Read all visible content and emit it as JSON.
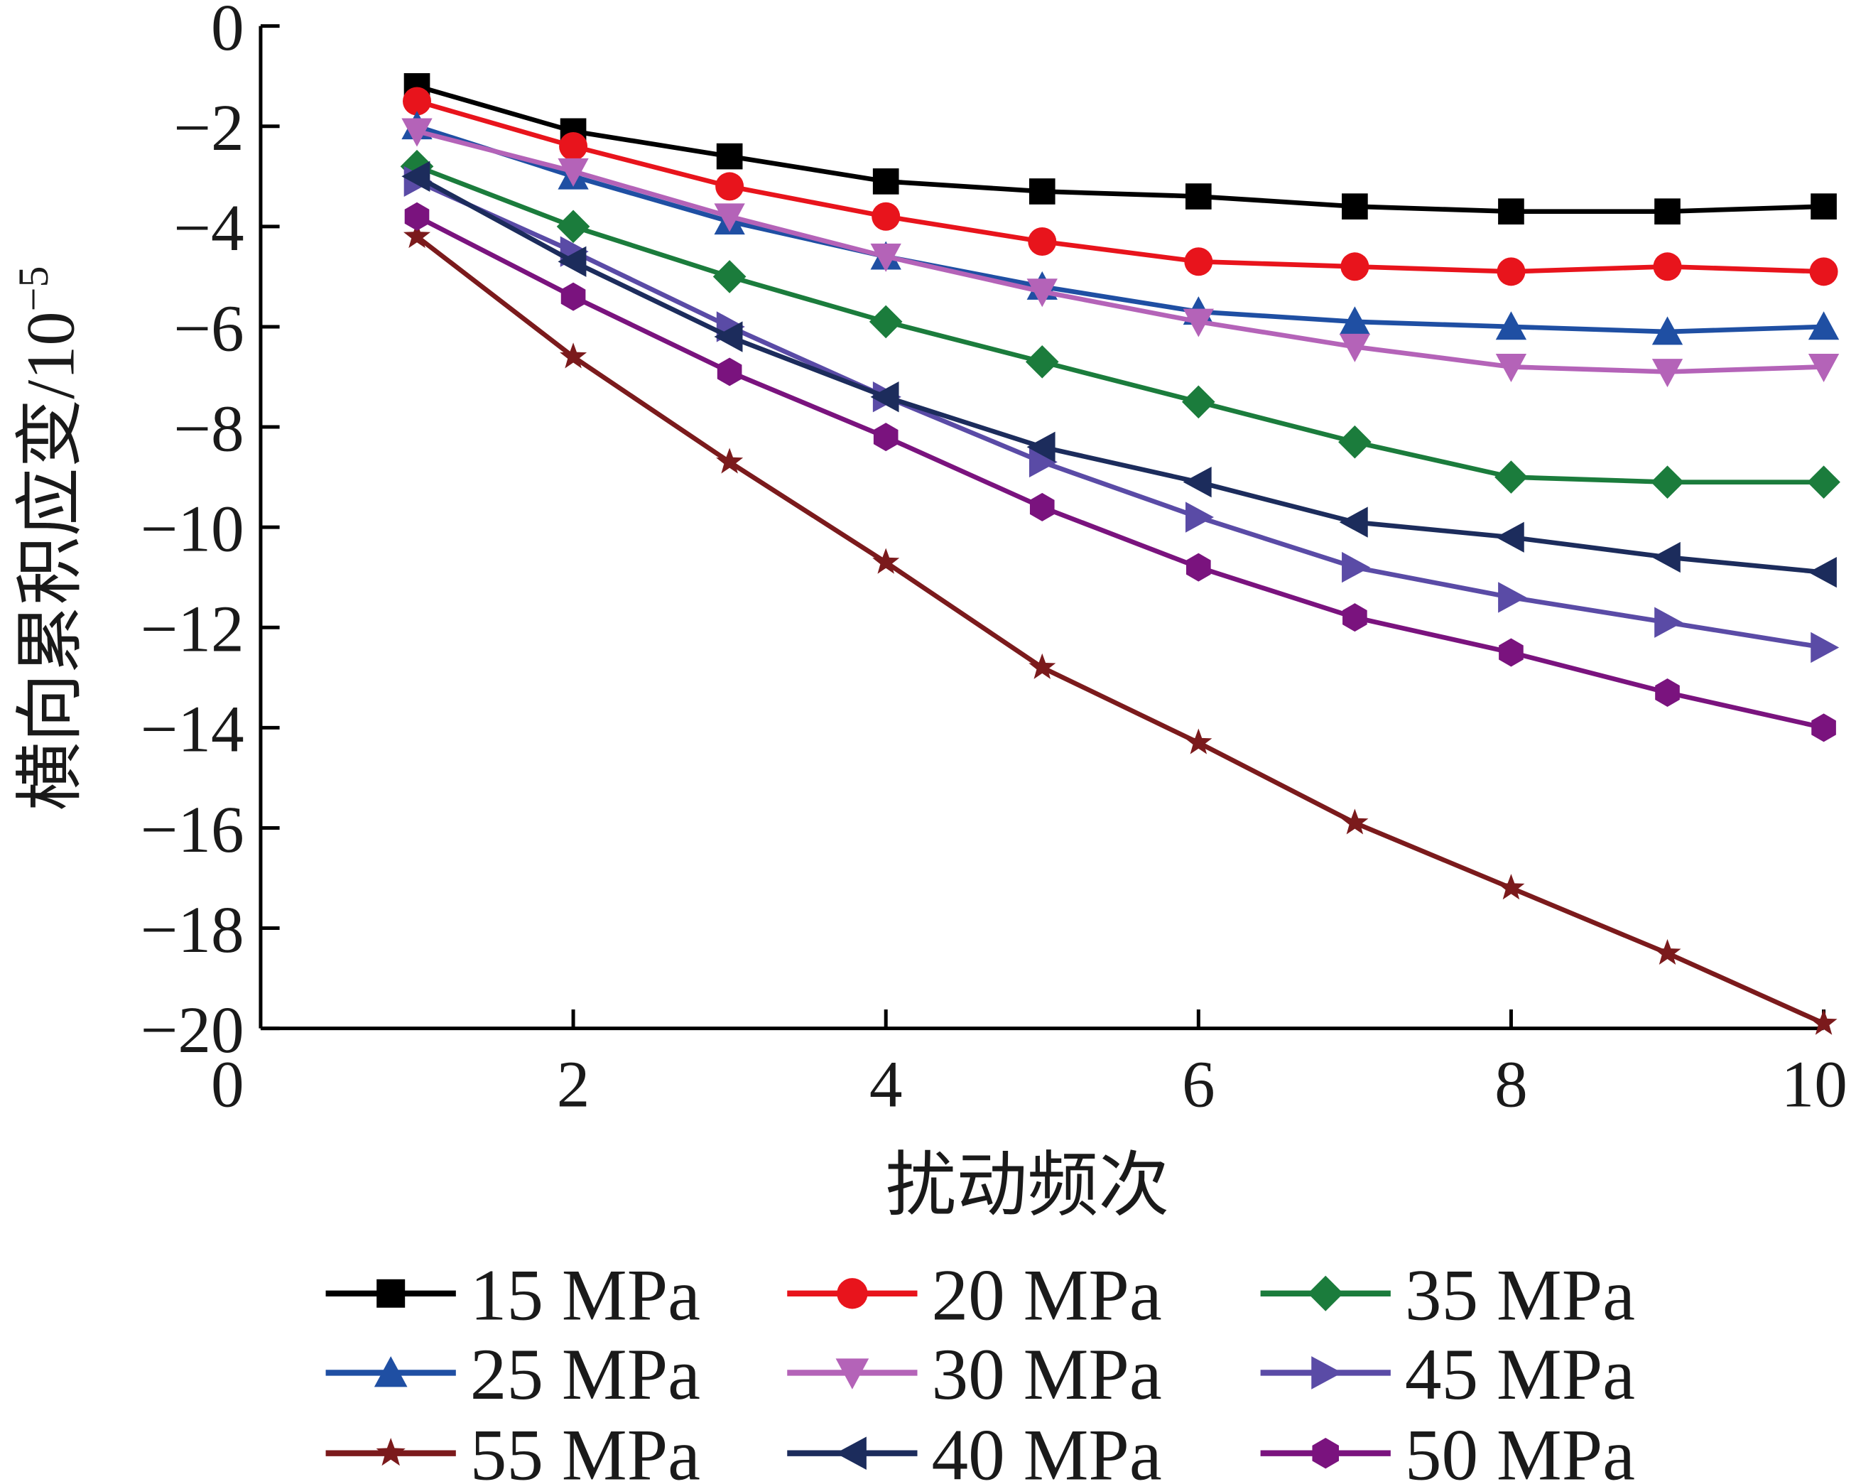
{
  "chart_data": {
    "type": "line",
    "title": "",
    "xlabel": "扰动频次",
    "ylabel": "横向累积应变/10",
    "ylabel_exponent": "−5",
    "xlim": [
      0,
      10
    ],
    "ylim": [
      -20,
      0
    ],
    "xticks": [
      0,
      2,
      4,
      6,
      8,
      10
    ],
    "xtick_labels": [
      "0",
      "2",
      "4",
      "6",
      "8",
      "10"
    ],
    "yticks": [
      0,
      -2,
      -4,
      -6,
      -8,
      -10,
      -12,
      -14,
      -16,
      -18,
      -20
    ],
    "ytick_labels": [
      "0",
      "−2",
      "−4",
      "−6",
      "−8",
      "−10",
      "−12",
      "−14",
      "−16",
      "−18",
      "−20"
    ],
    "grid": false,
    "legend_placement": "bottom",
    "x": [
      1,
      2,
      3,
      4,
      5,
      6,
      7,
      8,
      9,
      10
    ],
    "series": [
      {
        "name": "15 MPa",
        "color": "#000000",
        "marker": "square",
        "values": [
          -1.2,
          -2.1,
          -2.6,
          -3.1,
          -3.3,
          -3.4,
          -3.6,
          -3.7,
          -3.7,
          -3.6
        ]
      },
      {
        "name": "20 MPa",
        "color": "#e8141c",
        "marker": "circle",
        "values": [
          -1.5,
          -2.4,
          -3.2,
          -3.8,
          -4.3,
          -4.7,
          -4.8,
          -4.9,
          -4.8,
          -4.9
        ]
      },
      {
        "name": "35 MPa",
        "color": "#1b7c3c",
        "marker": "diamond",
        "values": [
          -2.8,
          -4.0,
          -5.0,
          -5.9,
          -6.7,
          -7.5,
          -8.3,
          -9.0,
          -9.1,
          -9.1
        ]
      },
      {
        "name": "25 MPa",
        "color": "#1f4fa3",
        "marker": "triangle-up",
        "values": [
          -2.0,
          -3.0,
          -3.9,
          -4.6,
          -5.2,
          -5.7,
          -5.9,
          -6.0,
          -6.1,
          -6.0
        ]
      },
      {
        "name": "30 MPa",
        "color": "#b463b8",
        "marker": "triangle-down",
        "values": [
          -2.1,
          -2.9,
          -3.8,
          -4.6,
          -5.3,
          -5.9,
          -6.4,
          -6.8,
          -6.9,
          -6.8
        ]
      },
      {
        "name": "45 MPa",
        "color": "#5a4ba6",
        "marker": "triangle-right",
        "values": [
          -3.1,
          -4.5,
          -6.0,
          -7.4,
          -8.7,
          -9.8,
          -10.8,
          -11.4,
          -11.9,
          -12.4
        ]
      },
      {
        "name": "55 MPa",
        "color": "#7b1a1c",
        "marker": "star",
        "values": [
          -4.2,
          -6.6,
          -8.7,
          -10.7,
          -12.8,
          -14.3,
          -15.9,
          -17.2,
          -18.5,
          -19.9
        ]
      },
      {
        "name": "40 MPa",
        "color": "#1c2c5c",
        "marker": "triangle-left",
        "values": [
          -3.0,
          -4.7,
          -6.2,
          -7.4,
          -8.4,
          -9.1,
          -9.9,
          -10.2,
          -10.6,
          -10.9
        ]
      },
      {
        "name": "50 MPa",
        "color": "#7a137e",
        "marker": "hexagon",
        "values": [
          -3.8,
          -5.4,
          -6.9,
          -8.2,
          -9.6,
          -10.8,
          -11.8,
          -12.5,
          -13.3,
          -14.0
        ]
      }
    ]
  }
}
